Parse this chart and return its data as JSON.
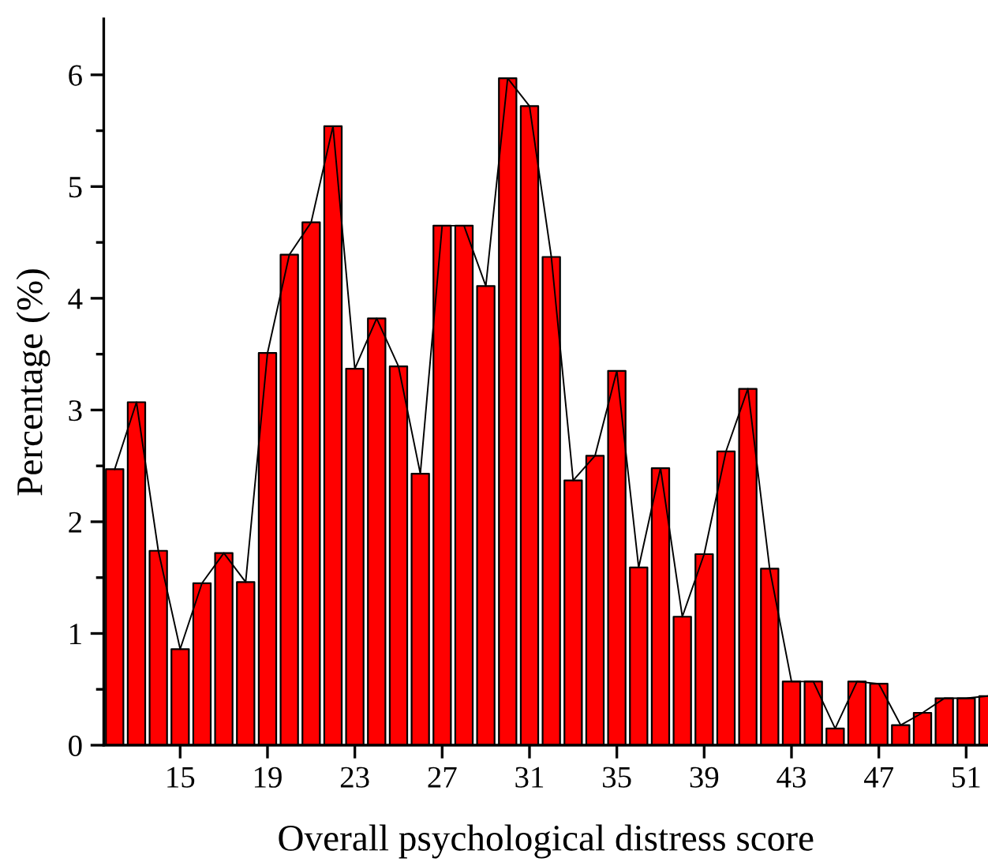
{
  "chart_data": {
    "type": "bar",
    "xlabel": "Overall psychological distress score",
    "ylabel": "Percentage (%)",
    "x": [
      12,
      13,
      14,
      15,
      16,
      17,
      18,
      19,
      20,
      21,
      22,
      23,
      24,
      25,
      26,
      27,
      28,
      29,
      30,
      31,
      32,
      33,
      34,
      35,
      36,
      37,
      38,
      39,
      40,
      41,
      42,
      43,
      44,
      45,
      46,
      47,
      48,
      49,
      50,
      51,
      52
    ],
    "series": [
      {
        "color": "#ff0000",
        "values": [
          2.47,
          3.07,
          1.74,
          0.86,
          1.45,
          1.72,
          1.46,
          3.51,
          4.39,
          4.68,
          5.54,
          3.37,
          3.82,
          3.39,
          2.43,
          4.65,
          4.65,
          4.11,
          5.97,
          5.72,
          4.37,
          2.37,
          2.59,
          3.35,
          1.59,
          2.48,
          1.15,
          1.71,
          2.63,
          3.19,
          1.58,
          0.57,
          0.57,
          0.15,
          0.57,
          0.55,
          0.18,
          0.29,
          0.42,
          0.42,
          0.44
        ]
      },
      {
        "type": "line",
        "color": "#000000",
        "values": [
          2.47,
          3.07,
          1.74,
          0.86,
          1.45,
          1.72,
          1.46,
          3.51,
          4.39,
          4.68,
          5.54,
          3.37,
          3.82,
          3.39,
          2.43,
          4.65,
          4.65,
          4.11,
          5.97,
          5.72,
          4.37,
          2.37,
          2.59,
          3.35,
          1.59,
          2.48,
          1.15,
          1.71,
          2.63,
          3.19,
          1.58,
          0.57,
          0.57,
          0.15,
          0.57,
          0.55,
          0.18,
          0.29,
          0.42,
          0.42,
          0.44
        ]
      }
    ],
    "xlim": [
      11.5,
      52.0
    ],
    "xticks": [
      15,
      19,
      23,
      27,
      31,
      35,
      39,
      43,
      47,
      51
    ],
    "ylim": [
      0,
      6.5
    ],
    "yticks": [
      0,
      1,
      2,
      3,
      4,
      5,
      6
    ],
    "grid": false,
    "legend": false,
    "marker": "none",
    "line_style": "solid"
  }
}
